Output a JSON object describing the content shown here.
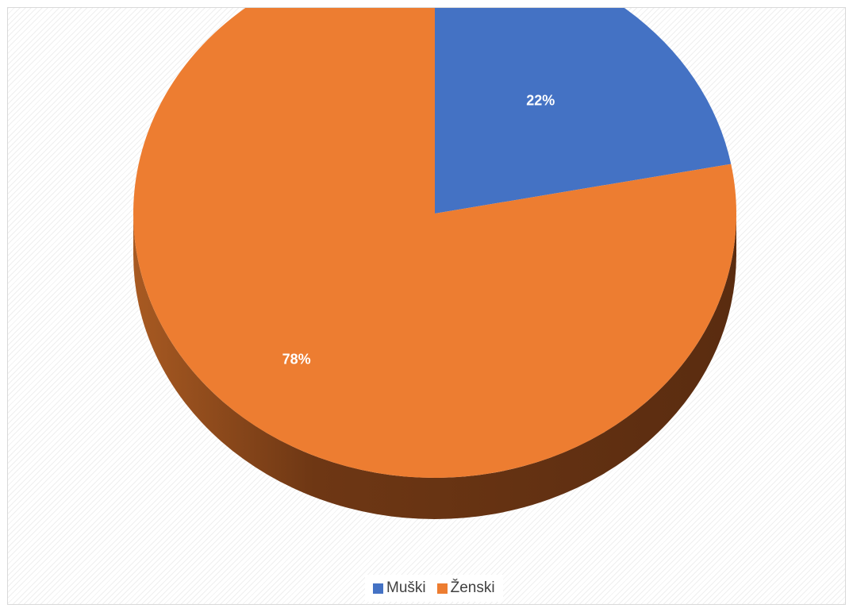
{
  "chart_data": {
    "type": "pie",
    "title": "",
    "categories": [
      "Muški",
      "Ženski"
    ],
    "values": [
      22,
      78
    ],
    "data_labels": [
      "22%",
      "78%"
    ],
    "colors": [
      "#4472C4",
      "#ED7D31"
    ],
    "style": "3d",
    "legend_position": "bottom"
  },
  "legend": {
    "items": [
      {
        "label": "Muški",
        "color": "#4472C4"
      },
      {
        "label": "Ženski",
        "color": "#ED7D31"
      }
    ]
  }
}
